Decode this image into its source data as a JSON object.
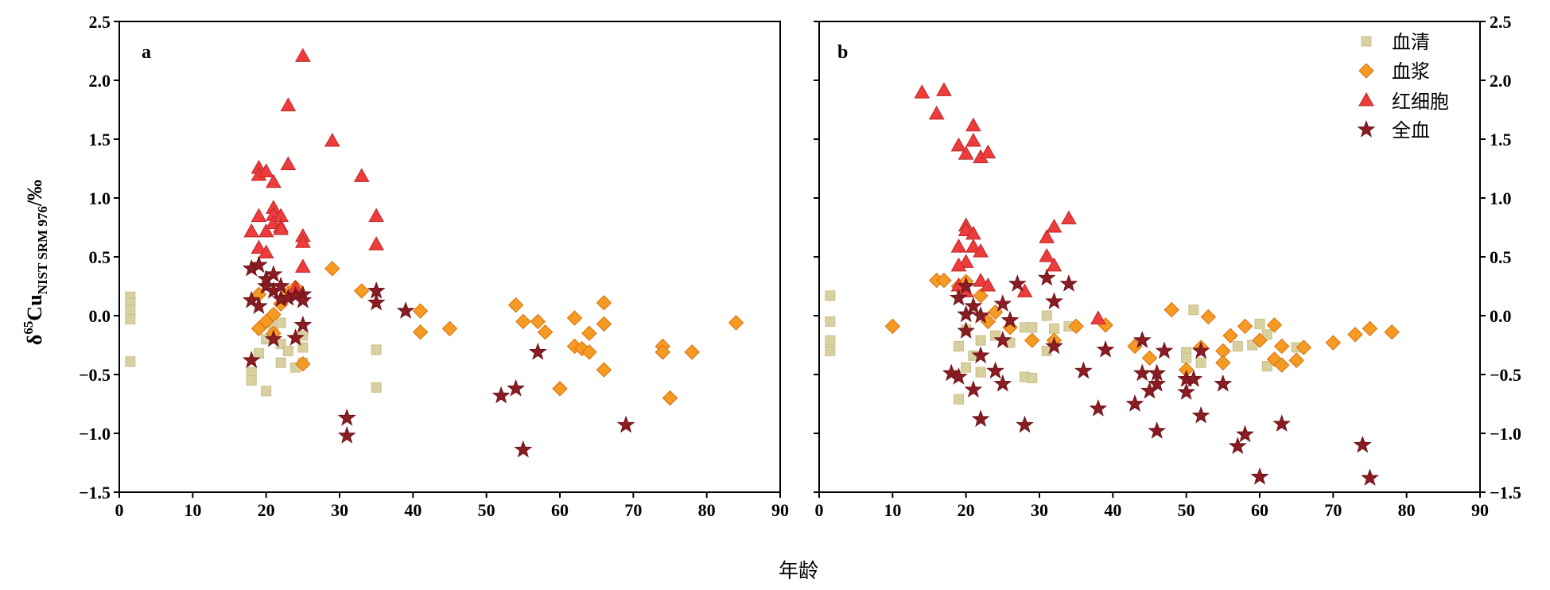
{
  "figure": {
    "xlabel": "年龄",
    "ylabel_parts": [
      {
        "text": "δ",
        "style": "normal"
      },
      {
        "text": "65",
        "style": "sup"
      },
      {
        "text": "Cu",
        "style": "normal"
      },
      {
        "text": "NIST SRM 976",
        "style": "sub"
      },
      {
        "text": "/‰",
        "style": "normal"
      }
    ],
    "legend_panel": "b",
    "legend_placement": "top-right"
  },
  "chart_data": [
    {
      "panel_label": "a",
      "type": "scatter",
      "xlim": [
        0,
        90
      ],
      "ylim": [
        -1.5,
        2.5
      ],
      "grid": false,
      "x_ticks": [
        0,
        10,
        20,
        30,
        40,
        50,
        60,
        70,
        80,
        90
      ],
      "x_tick_labels": [
        "0",
        "10",
        "20",
        "30",
        "40",
        "50",
        "60",
        "70",
        "80",
        "90"
      ],
      "y_ticks": [
        -1.5,
        -1.0,
        -0.5,
        0.0,
        0.5,
        1.0,
        1.5,
        2.0,
        2.5
      ],
      "y_tick_labels": [
        "−1.5",
        "−1.0",
        "−0.5",
        "0.0",
        "0.5",
        "1.0",
        "1.5",
        "2.0",
        "2.5"
      ],
      "y_tick_label_side": "left",
      "series": [
        {
          "name": "血清",
          "marker": "square",
          "color": "#d9d0a0",
          "edge_color": "#c9bd88",
          "points": [
            [
              1.5,
              0.16
            ],
            [
              1.5,
              0.11
            ],
            [
              1.5,
              0.05
            ],
            [
              1.5,
              -0.03
            ],
            [
              1.5,
              -0.39
            ],
            [
              18,
              -0.48
            ],
            [
              18,
              -0.55
            ],
            [
              19,
              -0.32
            ],
            [
              20,
              -0.64
            ],
            [
              20,
              -0.2
            ],
            [
              21,
              -0.17
            ],
            [
              21,
              -0.1
            ],
            [
              22,
              -0.24
            ],
            [
              22,
              -0.4
            ],
            [
              22,
              -0.06
            ],
            [
              23,
              -0.3
            ],
            [
              24,
              -0.44
            ],
            [
              25,
              -0.17
            ],
            [
              25,
              -0.27
            ],
            [
              25,
              -0.4
            ],
            [
              35,
              -0.29
            ],
            [
              35,
              -0.61
            ]
          ]
        },
        {
          "name": "血浆",
          "marker": "diamond",
          "color": "#f59a23",
          "edge_color": "#d9700c",
          "points": [
            [
              19,
              0.18
            ],
            [
              19,
              -0.11
            ],
            [
              20,
              -0.05
            ],
            [
              21,
              0.01
            ],
            [
              21,
              -0.15
            ],
            [
              22,
              0.1
            ],
            [
              23,
              0.19
            ],
            [
              24,
              0.24
            ],
            [
              25,
              -0.41
            ],
            [
              29,
              0.4
            ],
            [
              33,
              0.21
            ],
            [
              41,
              0.04
            ],
            [
              41,
              -0.14
            ],
            [
              45,
              -0.11
            ],
            [
              54,
              0.09
            ],
            [
              55,
              -0.05
            ],
            [
              57,
              -0.05
            ],
            [
              58,
              -0.14
            ],
            [
              60,
              -0.62
            ],
            [
              62,
              -0.02
            ],
            [
              62,
              -0.26
            ],
            [
              63,
              -0.28
            ],
            [
              64,
              -0.31
            ],
            [
              64,
              -0.15
            ],
            [
              66,
              0.11
            ],
            [
              66,
              -0.07
            ],
            [
              66,
              -0.46
            ],
            [
              74,
              -0.26
            ],
            [
              74,
              -0.31
            ],
            [
              75,
              -0.7
            ],
            [
              78,
              -0.31
            ],
            [
              84,
              -0.06
            ]
          ]
        },
        {
          "name": "红细胞",
          "marker": "triangle",
          "color": "#ee3b3b",
          "edge_color": "#c0282a",
          "points": [
            [
              18,
              0.71
            ],
            [
              19,
              1.25
            ],
            [
              19,
              1.19
            ],
            [
              19,
              0.84
            ],
            [
              19,
              0.57
            ],
            [
              20,
              1.22
            ],
            [
              20,
              0.71
            ],
            [
              20,
              0.53
            ],
            [
              21,
              1.13
            ],
            [
              21,
              0.91
            ],
            [
              21,
              0.85
            ],
            [
              21,
              0.78
            ],
            [
              22,
              0.84
            ],
            [
              22,
              0.75
            ],
            [
              22,
              0.73
            ],
            [
              23,
              1.28
            ],
            [
              23,
              1.78
            ],
            [
              25,
              2.2
            ],
            [
              25,
              0.67
            ],
            [
              25,
              0.62
            ],
            [
              25,
              0.41
            ],
            [
              29,
              1.48
            ],
            [
              33,
              1.18
            ],
            [
              35,
              0.84
            ],
            [
              35,
              0.6
            ],
            [
              24,
              0.23
            ]
          ]
        },
        {
          "name": "全血",
          "marker": "star",
          "color": "#8a1d24",
          "edge_color": "#6e1218",
          "points": [
            [
              18,
              0.4
            ],
            [
              19,
              0.43
            ],
            [
              18,
              0.13
            ],
            [
              19,
              0.08
            ],
            [
              20,
              0.25
            ],
            [
              20,
              0.31
            ],
            [
              21,
              0.35
            ],
            [
              21,
              0.21
            ],
            [
              22,
              0.25
            ],
            [
              22,
              0.14
            ],
            [
              23,
              0.15
            ],
            [
              24,
              0.17
            ],
            [
              25,
              0.18
            ],
            [
              25,
              0.13
            ],
            [
              25,
              -0.08
            ],
            [
              24,
              -0.19
            ],
            [
              21,
              -0.2
            ],
            [
              18,
              -0.38
            ],
            [
              31,
              -0.87
            ],
            [
              31,
              -1.02
            ],
            [
              35,
              0.21
            ],
            [
              35,
              0.11
            ],
            [
              39,
              0.04
            ],
            [
              52,
              -0.68
            ],
            [
              54,
              -0.62
            ],
            [
              55,
              -1.14
            ],
            [
              57,
              -0.31
            ],
            [
              69,
              -0.93
            ]
          ]
        }
      ]
    },
    {
      "panel_label": "b",
      "type": "scatter",
      "xlim": [
        0,
        90
      ],
      "ylim": [
        -1.5,
        2.5
      ],
      "grid": false,
      "x_ticks": [
        0,
        10,
        20,
        30,
        40,
        50,
        60,
        70,
        80,
        90
      ],
      "x_tick_labels": [
        "0",
        "10",
        "20",
        "30",
        "40",
        "50",
        "60",
        "70",
        "80",
        "90"
      ],
      "y_ticks": [
        -1.5,
        -1.0,
        -0.5,
        0.0,
        0.5,
        1.0,
        1.5,
        2.0,
        2.5
      ],
      "y_tick_labels": [
        "−1.5",
        "−1.0",
        "−0.5",
        "0.0",
        "0.5",
        "1.0",
        "1.5",
        "2.0",
        "2.5"
      ],
      "y_tick_label_side": "right",
      "series": [
        {
          "name": "血清",
          "marker": "square",
          "color": "#d9d0a0",
          "edge_color": "#c9bd88",
          "points": [
            [
              1.5,
              0.17
            ],
            [
              1.5,
              -0.05
            ],
            [
              1.5,
              -0.21
            ],
            [
              1.5,
              -0.3
            ],
            [
              19,
              -0.71
            ],
            [
              19,
              -0.26
            ],
            [
              20,
              -0.12
            ],
            [
              20,
              -0.44
            ],
            [
              21,
              -0.34
            ],
            [
              22,
              -0.48
            ],
            [
              22,
              -0.21
            ],
            [
              24,
              -0.17
            ],
            [
              26,
              -0.23
            ],
            [
              28,
              -0.1
            ],
            [
              28,
              -0.52
            ],
            [
              29,
              -0.53
            ],
            [
              29,
              -0.1
            ],
            [
              31,
              0.0
            ],
            [
              31,
              -0.3
            ],
            [
              32,
              -0.11
            ],
            [
              34,
              -0.09
            ],
            [
              50,
              -0.31
            ],
            [
              50,
              -0.36
            ],
            [
              51,
              0.05
            ],
            [
              52,
              -0.4
            ],
            [
              57,
              -0.26
            ],
            [
              59,
              -0.25
            ],
            [
              60,
              -0.07
            ],
            [
              61,
              -0.16
            ],
            [
              61,
              -0.43
            ],
            [
              65,
              -0.27
            ]
          ]
        },
        {
          "name": "血浆",
          "marker": "diamond",
          "color": "#f59a23",
          "edge_color": "#d9700c",
          "points": [
            [
              10,
              -0.09
            ],
            [
              16,
              0.3
            ],
            [
              17,
              0.3
            ],
            [
              19,
              0.25
            ],
            [
              20,
              0.29
            ],
            [
              22,
              0.17
            ],
            [
              23,
              -0.05
            ],
            [
              24,
              0.03
            ],
            [
              26,
              -0.1
            ],
            [
              29,
              -0.21
            ],
            [
              32,
              -0.21
            ],
            [
              35,
              -0.09
            ],
            [
              39,
              -0.08
            ],
            [
              43,
              -0.26
            ],
            [
              45,
              -0.36
            ],
            [
              48,
              0.05
            ],
            [
              50,
              -0.46
            ],
            [
              52,
              -0.27
            ],
            [
              53,
              -0.01
            ],
            [
              55,
              -0.3
            ],
            [
              55,
              -0.4
            ],
            [
              56,
              -0.17
            ],
            [
              58,
              -0.09
            ],
            [
              60,
              -0.21
            ],
            [
              62,
              -0.08
            ],
            [
              62,
              -0.37
            ],
            [
              63,
              -0.42
            ],
            [
              63,
              -0.26
            ],
            [
              65,
              -0.38
            ],
            [
              66,
              -0.27
            ],
            [
              70,
              -0.23
            ],
            [
              73,
              -0.16
            ],
            [
              75,
              -0.11
            ],
            [
              78,
              -0.14
            ]
          ]
        },
        {
          "name": "红细胞",
          "marker": "triangle",
          "color": "#ee3b3b",
          "edge_color": "#c0282a",
          "points": [
            [
              14,
              1.89
            ],
            [
              16,
              1.71
            ],
            [
              17,
              1.91
            ],
            [
              19,
              1.44
            ],
            [
              20,
              1.37
            ],
            [
              21,
              1.48
            ],
            [
              21,
              1.61
            ],
            [
              22,
              1.34
            ],
            [
              23,
              1.38
            ],
            [
              19,
              0.58
            ],
            [
              20,
              0.76
            ],
            [
              20,
              0.72
            ],
            [
              20,
              0.45
            ],
            [
              21,
              0.69
            ],
            [
              21,
              0.58
            ],
            [
              22,
              0.54
            ],
            [
              22,
              0.29
            ],
            [
              19,
              0.42
            ],
            [
              19,
              0.25
            ],
            [
              20,
              0.2
            ],
            [
              23,
              0.25
            ],
            [
              28,
              0.2
            ],
            [
              31,
              0.66
            ],
            [
              31,
              0.5
            ],
            [
              32,
              0.75
            ],
            [
              32,
              0.42
            ],
            [
              34,
              0.82
            ],
            [
              38,
              -0.03
            ]
          ]
        },
        {
          "name": "全血",
          "marker": "star",
          "color": "#8a1d24",
          "edge_color": "#6e1218",
          "points": [
            [
              19,
              0.15
            ],
            [
              20,
              0.25
            ],
            [
              20,
              0.01
            ],
            [
              20,
              -0.13
            ],
            [
              21,
              0.08
            ],
            [
              22,
              0.0
            ],
            [
              22,
              -0.34
            ],
            [
              18,
              -0.49
            ],
            [
              19,
              -0.52
            ],
            [
              21,
              -0.63
            ],
            [
              22,
              -0.88
            ],
            [
              24,
              -0.47
            ],
            [
              25,
              0.1
            ],
            [
              25,
              -0.21
            ],
            [
              25,
              -0.58
            ],
            [
              26,
              -0.04
            ],
            [
              27,
              0.27
            ],
            [
              28,
              -0.93
            ],
            [
              31,
              0.32
            ],
            [
              32,
              0.12
            ],
            [
              32,
              -0.26
            ],
            [
              34,
              0.27
            ],
            [
              36,
              -0.47
            ],
            [
              38,
              -0.79
            ],
            [
              39,
              -0.29
            ],
            [
              43,
              -0.75
            ],
            [
              44,
              -0.21
            ],
            [
              44,
              -0.49
            ],
            [
              45,
              -0.64
            ],
            [
              46,
              -0.98
            ],
            [
              46,
              -0.58
            ],
            [
              46,
              -0.49
            ],
            [
              47,
              -0.3
            ],
            [
              50,
              -0.54
            ],
            [
              50,
              -0.65
            ],
            [
              51,
              -0.54
            ],
            [
              52,
              -0.3
            ],
            [
              52,
              -0.85
            ],
            [
              55,
              -0.58
            ],
            [
              57,
              -1.11
            ],
            [
              58,
              -1.01
            ],
            [
              60,
              -1.37
            ],
            [
              63,
              -0.92
            ],
            [
              74,
              -1.1
            ],
            [
              75,
              -1.38
            ]
          ]
        }
      ]
    }
  ]
}
